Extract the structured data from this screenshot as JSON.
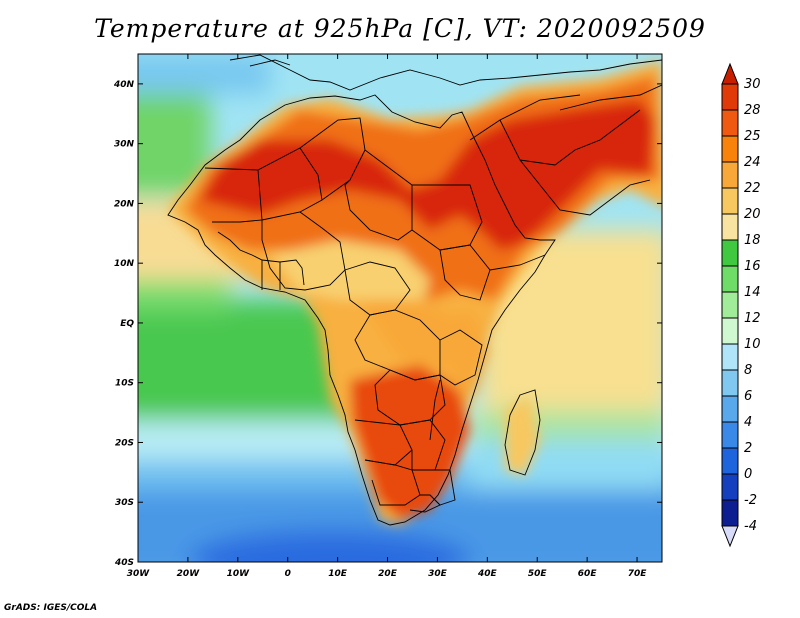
{
  "title": "Temperature at 925hPa [C], VT: 2020092509",
  "credit": "GrADS: IGES/COLA",
  "map": {
    "lon_range": [
      -30,
      75
    ],
    "lat_range": [
      -40,
      45
    ],
    "lon_ticks": [
      {
        "value": -30,
        "label": "30W"
      },
      {
        "value": -20,
        "label": "20W"
      },
      {
        "value": -10,
        "label": "10W"
      },
      {
        "value": 0,
        "label": "0"
      },
      {
        "value": 10,
        "label": "10E"
      },
      {
        "value": 20,
        "label": "20E"
      },
      {
        "value": 30,
        "label": "30E"
      },
      {
        "value": 40,
        "label": "40E"
      },
      {
        "value": 50,
        "label": "50E"
      },
      {
        "value": 60,
        "label": "60E"
      },
      {
        "value": 70,
        "label": "70E"
      }
    ],
    "lat_ticks": [
      {
        "value": 40,
        "label": "40N"
      },
      {
        "value": 30,
        "label": "30N"
      },
      {
        "value": 20,
        "label": "20N"
      },
      {
        "value": 10,
        "label": "10N"
      },
      {
        "value": 0,
        "label": "EQ"
      },
      {
        "value": -10,
        "label": "10S"
      },
      {
        "value": -20,
        "label": "20S"
      },
      {
        "value": -30,
        "label": "30S"
      },
      {
        "value": -40,
        "label": "40S"
      }
    ]
  },
  "colorbar": {
    "labels": [
      "30",
      "28",
      "25",
      "24",
      "22",
      "20",
      "18",
      "16",
      "14",
      "12",
      "10",
      "8",
      "6",
      "4",
      "2",
      "0",
      "-2",
      "-4"
    ],
    "top_color": "#c81e00",
    "bottom_color": "#d8dcf8",
    "colors": [
      "#e03a08",
      "#f05a10",
      "#f8820a",
      "#f8a838",
      "#f8c860",
      "#f8e4a0",
      "#40c840",
      "#70dc68",
      "#a0ec98",
      "#d0f8d0",
      "#b0e4f8",
      "#80c8f0",
      "#5aa8ec",
      "#3a88e8",
      "#1e64dc",
      "#1440c0",
      "#0c1e90"
    ]
  },
  "legend_colors": {
    "ocean_cold": "#4a9ce6",
    "ocean_cool": "#a8dcf6",
    "ocean_mild": "#3cc04a",
    "ocean_warm": "#f8e09a",
    "land_warm": "#f8a840",
    "land_hot": "#d82a0c"
  }
}
